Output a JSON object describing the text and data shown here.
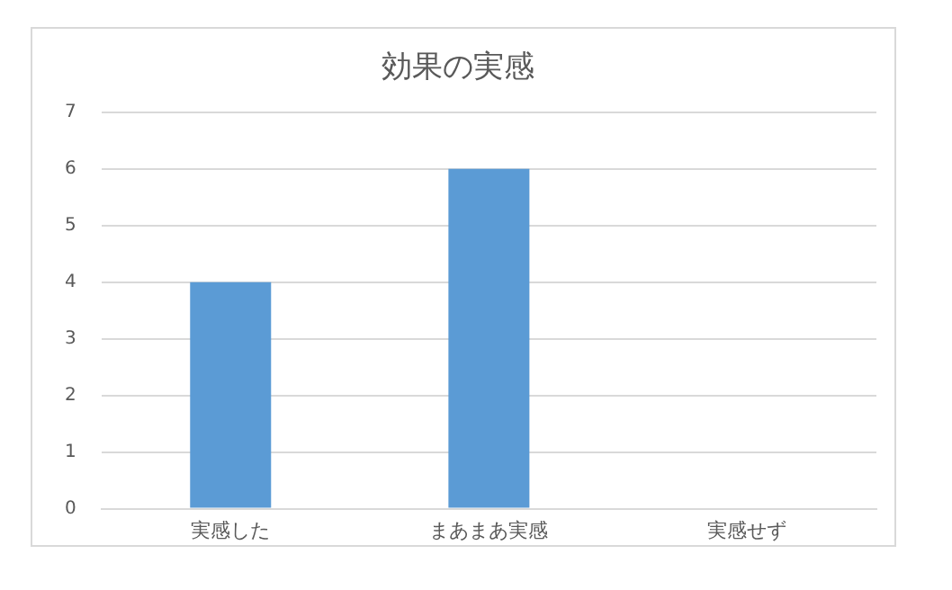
{
  "chart_data": {
    "type": "bar",
    "title": "効果の実感",
    "categories": [
      "実感した",
      "まあまあ実感",
      "実感せず"
    ],
    "values": [
      4,
      6,
      0
    ],
    "color": "#5b9bd5",
    "ylim": [
      0,
      7
    ],
    "yticks": [
      0,
      1,
      2,
      3,
      4,
      5,
      6,
      7
    ],
    "grid": "y",
    "legend": false
  }
}
